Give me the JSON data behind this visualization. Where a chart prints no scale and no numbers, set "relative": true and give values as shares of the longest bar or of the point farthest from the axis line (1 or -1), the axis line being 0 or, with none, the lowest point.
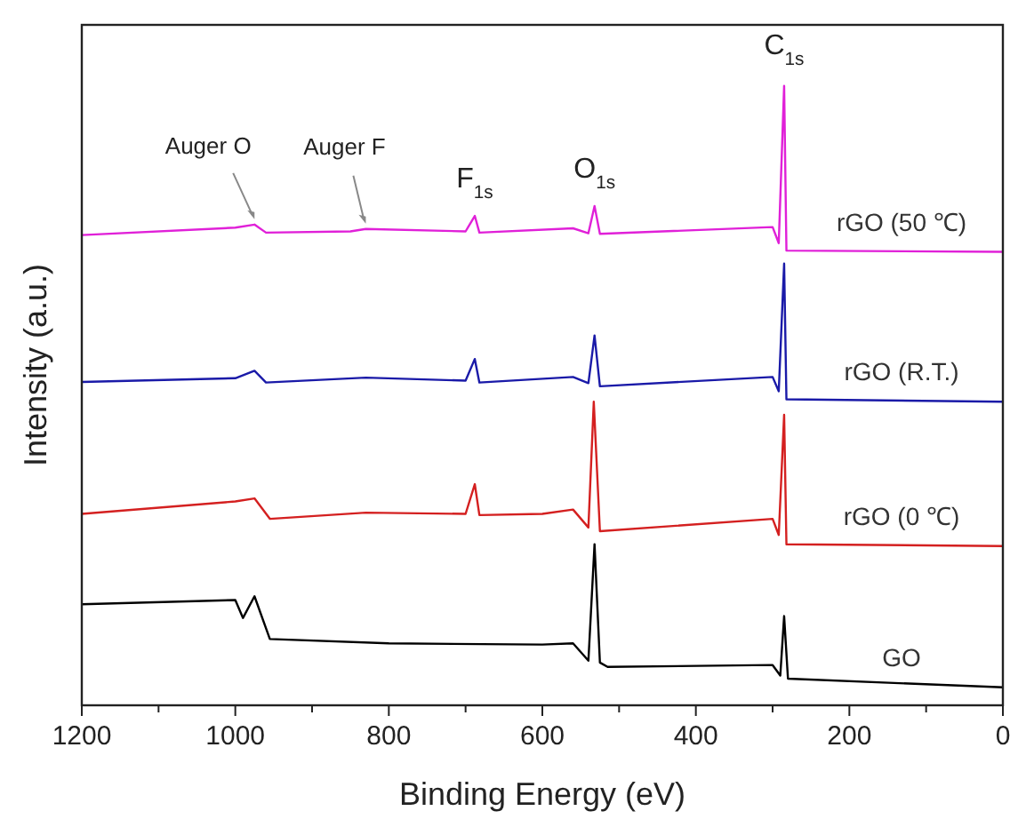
{
  "chart_data": {
    "type": "line",
    "relative": true,
    "xlabel": "Binding Energy (eV)",
    "ylabel": "Intensity (a.u.)",
    "xlim": [
      1200,
      0
    ],
    "xticks": [
      1200,
      {
        "value": 1100,
        "label": null
      },
      1000,
      {
        "value": 900,
        "label": null
      },
      800,
      {
        "value": 700,
        "label": null
      },
      600,
      {
        "value": 500,
        "label": null
      },
      400,
      {
        "value": 300,
        "label": null
      },
      200,
      {
        "value": 100,
        "label": null
      },
      0
    ],
    "series": [
      {
        "name": "rGO (50 ℃)",
        "color": "#e020d8",
        "x": [
          1200,
          1000,
          975,
          960,
          850,
          830,
          700,
          688,
          682,
          560,
          540,
          532,
          525,
          300,
          292,
          285,
          282,
          0
        ],
        "values": [
          0.759,
          0.771,
          0.776,
          0.763,
          0.765,
          0.769,
          0.765,
          0.79,
          0.763,
          0.77,
          0.762,
          0.806,
          0.761,
          0.772,
          0.746,
          1.0,
          0.734,
          0.732
        ]
      },
      {
        "name": "rGO (R.T.)",
        "color": "#1a1aa8",
        "x": [
          1200,
          1000,
          975,
          960,
          830,
          700,
          688,
          682,
          560,
          540,
          532,
          525,
          300,
          292,
          285,
          282,
          0
        ],
        "values": [
          0.522,
          0.528,
          0.54,
          0.521,
          0.529,
          0.524,
          0.559,
          0.521,
          0.53,
          0.52,
          0.597,
          0.515,
          0.53,
          0.507,
          0.713,
          0.494,
          0.49
        ]
      },
      {
        "name": "rGO (0 ℃)",
        "color": "#d42020",
        "x": [
          1200,
          1000,
          975,
          955,
          830,
          700,
          688,
          682,
          600,
          560,
          540,
          533,
          525,
          300,
          292,
          285,
          282,
          0
        ],
        "values": [
          0.309,
          0.329,
          0.334,
          0.301,
          0.311,
          0.309,
          0.357,
          0.307,
          0.309,
          0.316,
          0.287,
          0.49,
          0.281,
          0.301,
          0.275,
          0.469,
          0.26,
          0.257
        ]
      },
      {
        "name": "GO",
        "color": "#000000",
        "x": [
          1200,
          1000,
          990,
          975,
          955,
          800,
          600,
          560,
          540,
          532,
          525,
          515,
          300,
          290,
          285,
          280,
          0
        ],
        "values": [
          0.163,
          0.17,
          0.141,
          0.176,
          0.107,
          0.1,
          0.098,
          0.1,
          0.072,
          0.26,
          0.069,
          0.062,
          0.065,
          0.048,
          0.144,
          0.043,
          0.029
        ]
      }
    ],
    "annotations": [
      {
        "text": "C$_{1s}$",
        "x": 285,
        "y": 1.0
      },
      {
        "text": "O$_{1s}$",
        "x": 532,
        "y": 0.806
      },
      {
        "text": "F$_{1s}$",
        "x": 688,
        "y": 0.79
      },
      {
        "text": "Auger O",
        "x": 975,
        "y": 0.776
      },
      {
        "text": "Auger F",
        "x": 830,
        "y": 0.769
      }
    ]
  }
}
